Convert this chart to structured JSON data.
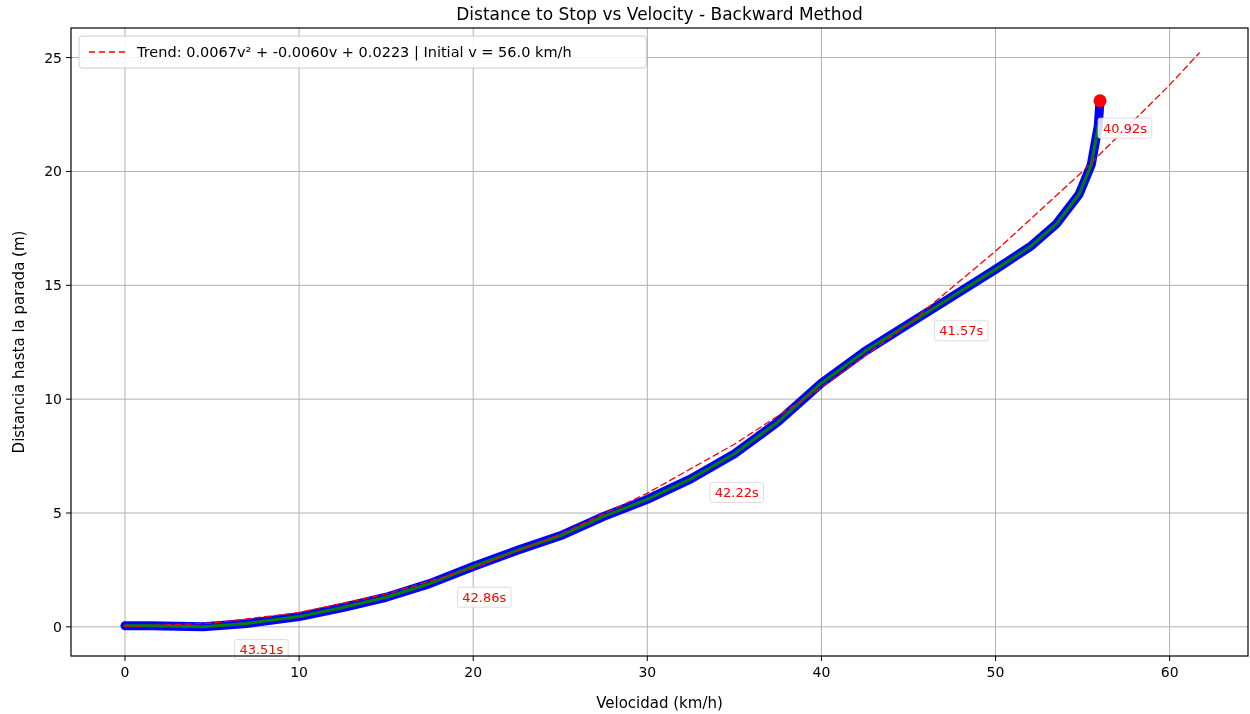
{
  "chart_data": {
    "type": "line",
    "title": "Distance to Stop vs Velocity - Backward Method",
    "xlabel": "Velocidad (km/h)",
    "ylabel": "Distancia hasta la parada (m)",
    "xlim": [
      -3.1,
      64.5
    ],
    "ylim": [
      -1.28,
      26.3
    ],
    "xticks": [
      0,
      10,
      20,
      30,
      40,
      50,
      60
    ],
    "yticks": [
      0,
      5,
      10,
      15,
      20,
      25
    ],
    "grid": true,
    "legend": "top left",
    "series": [
      {
        "color": "#0000ff",
        "x": [
          0,
          1.5,
          4.5,
          7,
          10,
          12.5,
          15,
          17.5,
          20,
          22.5,
          25,
          27.5,
          30,
          32.5,
          35,
          37.5,
          40,
          42.5,
          45,
          47.5,
          50,
          52,
          53.5,
          54.8,
          55.5,
          55.9,
          56
        ],
        "values": [
          0.05,
          0.05,
          0,
          0.15,
          0.45,
          0.85,
          1.3,
          1.9,
          2.65,
          3.35,
          4.0,
          4.85,
          5.6,
          6.5,
          7.6,
          9.0,
          10.7,
          12.1,
          13.3,
          14.5,
          15.7,
          16.7,
          17.7,
          19.0,
          20.3,
          22.0,
          23.1
        ]
      },
      {
        "color": "#008000",
        "x": [
          0,
          1.5,
          4.5,
          7,
          10,
          12.5,
          15,
          17.5,
          20,
          22.5,
          25,
          27.5,
          30,
          32.5,
          35,
          37.5,
          40,
          42.5,
          45,
          47.5,
          50,
          52,
          53.5,
          54.8,
          55.5,
          55.9
        ],
        "values": [
          0.05,
          0.05,
          0,
          0.15,
          0.45,
          0.85,
          1.3,
          1.9,
          2.65,
          3.35,
          4.0,
          4.85,
          5.6,
          6.5,
          7.6,
          9.0,
          10.7,
          12.1,
          13.3,
          14.5,
          15.7,
          16.7,
          17.7,
          19.0,
          20.3,
          22.0
        ]
      },
      {
        "name": "Trend: 0.0067v² + -0.0060v + 0.0223 | Initial v = 56.0 km/h",
        "color": "#ff0000",
        "line_style": "dashed",
        "x": [
          0,
          5,
          10,
          15,
          20,
          25,
          30,
          35,
          40,
          45,
          50,
          55,
          60,
          61.7
        ],
        "values": [
          0.02,
          0.16,
          0.63,
          1.44,
          2.58,
          4.06,
          5.87,
          8.02,
          10.5,
          13.3,
          16.5,
          20.0,
          23.8,
          25.2
        ]
      },
      {
        "type": "scatter",
        "color": "#ff0000",
        "marker": "circle",
        "x": [
          56
        ],
        "values": [
          23.1
        ]
      }
    ],
    "annotations": [
      {
        "text": "43.51s",
        "x": 6.4,
        "y": 0.1
      },
      {
        "text": "42.86s",
        "x": 19.2,
        "y": 2.4
      },
      {
        "text": "42.22s",
        "x": 33.7,
        "y": 7.0
      },
      {
        "text": "41.57s",
        "x": 46.6,
        "y": 14.1
      },
      {
        "text": "40.92s",
        "x": 56,
        "y": 23.0
      }
    ]
  }
}
